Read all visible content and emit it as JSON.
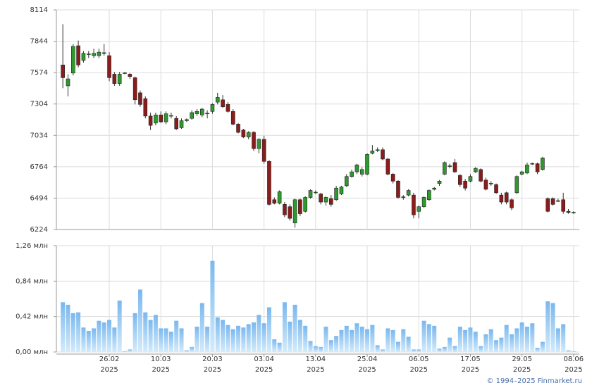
{
  "chart_data": {
    "type": "candlestick",
    "ylim": [
      6224,
      8114
    ],
    "yticks": [
      6224,
      6494,
      6764,
      7034,
      7304,
      7574,
      7844,
      8114
    ],
    "up_color": "#2e9a2e",
    "down_color": "#8b1c1c",
    "grid": true,
    "categories": [
      null,
      null,
      null,
      null,
      null,
      null,
      null,
      null,
      null,
      {
        "day": "26.02",
        "year": "2025"
      },
      null,
      null,
      null,
      null,
      null,
      null,
      null,
      null,
      null,
      {
        "day": "10.03",
        "year": "2025"
      },
      null,
      null,
      null,
      null,
      null,
      null,
      null,
      null,
      null,
      {
        "day": "20.03",
        "year": "2025"
      },
      null,
      null,
      null,
      null,
      null,
      null,
      null,
      null,
      null,
      {
        "day": "03.04",
        "year": "2025"
      },
      null,
      null,
      null,
      null,
      null,
      null,
      null,
      null,
      null,
      {
        "day": "13.04",
        "year": "2025"
      },
      null,
      null,
      null,
      null,
      null,
      null,
      null,
      null,
      null,
      {
        "day": "25.04",
        "year": "2025"
      },
      null,
      null,
      null,
      null,
      null,
      null,
      null,
      null,
      null,
      {
        "day": "06.05",
        "year": "2025"
      },
      null,
      null,
      null,
      null,
      null,
      null,
      null,
      null,
      null,
      {
        "day": "17.05",
        "year": "2025"
      },
      null,
      null,
      null,
      null,
      null,
      null,
      null,
      null,
      null,
      {
        "day": "29.05",
        "year": "2025"
      },
      null,
      null,
      null,
      null,
      null,
      null,
      null,
      null,
      null,
      {
        "day": "08.06",
        "year": "2025"
      }
    ],
    "ohlc": [
      [
        7640,
        7990,
        7440,
        7530
      ],
      [
        7460,
        7560,
        7370,
        7520
      ],
      [
        7570,
        7820,
        7550,
        7800
      ],
      [
        7805,
        7850,
        7620,
        7640
      ],
      [
        7680,
        7760,
        7660,
        7740
      ],
      [
        7730,
        7760,
        7700,
        7735
      ],
      [
        7720,
        7780,
        7700,
        7740
      ],
      [
        7720,
        7780,
        7700,
        7750
      ],
      [
        7745,
        7820,
        7720,
        7740
      ],
      [
        7720,
        7750,
        7500,
        7530
      ],
      [
        7560,
        7580,
        7460,
        7480
      ],
      [
        7480,
        7580,
        7460,
        7560
      ],
      [
        7570,
        7580,
        7560,
        7572
      ],
      [
        7560,
        7570,
        7520,
        7540
      ],
      [
        7530,
        7540,
        7300,
        7340
      ],
      [
        7400,
        7420,
        7280,
        7300
      ],
      [
        7350,
        7370,
        7180,
        7200
      ],
      [
        7200,
        7230,
        7080,
        7120
      ],
      [
        7140,
        7230,
        7120,
        7210
      ],
      [
        7210,
        7240,
        7140,
        7150
      ],
      [
        7150,
        7240,
        7130,
        7220
      ],
      [
        7200,
        7230,
        7180,
        7205
      ],
      [
        7180,
        7200,
        7080,
        7090
      ],
      [
        7100,
        7180,
        7090,
        7160
      ],
      [
        7160,
        7180,
        7150,
        7170
      ],
      [
        7180,
        7250,
        7170,
        7230
      ],
      [
        7220,
        7260,
        7200,
        7240
      ],
      [
        7210,
        7270,
        7190,
        7260
      ],
      [
        7220,
        7250,
        7180,
        7225
      ],
      [
        7240,
        7310,
        7220,
        7300
      ],
      [
        7320,
        7400,
        7300,
        7360
      ],
      [
        7340,
        7380,
        7270,
        7280
      ],
      [
        7300,
        7320,
        7230,
        7240
      ],
      [
        7240,
        7260,
        7120,
        7130
      ],
      [
        7130,
        7140,
        7050,
        7060
      ],
      [
        7080,
        7090,
        7010,
        7020
      ],
      [
        7020,
        7070,
        7000,
        7060
      ],
      [
        7060,
        7070,
        6900,
        6920
      ],
      [
        6920,
        7010,
        6880,
        7000
      ],
      [
        7000,
        7030,
        6790,
        6810
      ],
      [
        6810,
        6820,
        6430,
        6440
      ],
      [
        6480,
        6500,
        6440,
        6450
      ],
      [
        6450,
        6560,
        6440,
        6550
      ],
      [
        6440,
        6460,
        6330,
        6350
      ],
      [
        6420,
        6440,
        6300,
        6320
      ],
      [
        6280,
        6490,
        6240,
        6480
      ],
      [
        6480,
        6490,
        6340,
        6360
      ],
      [
        6380,
        6510,
        6370,
        6500
      ],
      [
        6500,
        6570,
        6490,
        6560
      ],
      [
        6540,
        6560,
        6530,
        6545
      ],
      [
        6530,
        6540,
        6440,
        6460
      ],
      [
        6460,
        6510,
        6430,
        6500
      ],
      [
        6490,
        6520,
        6420,
        6440
      ],
      [
        6480,
        6600,
        6470,
        6580
      ],
      [
        6530,
        6600,
        6520,
        6590
      ],
      [
        6600,
        6700,
        6590,
        6680
      ],
      [
        6680,
        6740,
        6670,
        6720
      ],
      [
        6720,
        6790,
        6700,
        6780
      ],
      [
        6700,
        6760,
        6680,
        6740
      ],
      [
        6700,
        6880,
        6690,
        6870
      ],
      [
        6880,
        6950,
        6870,
        6900
      ],
      [
        6905,
        6930,
        6890,
        6910
      ],
      [
        6910,
        6930,
        6820,
        6830
      ],
      [
        6830,
        6840,
        6690,
        6700
      ],
      [
        6700,
        6710,
        6620,
        6640
      ],
      [
        6640,
        6650,
        6490,
        6500
      ],
      [
        6500,
        6520,
        6480,
        6505
      ],
      [
        6520,
        6570,
        6510,
        6560
      ],
      [
        6520,
        6540,
        6320,
        6350
      ],
      [
        6380,
        6430,
        6320,
        6420
      ],
      [
        6420,
        6510,
        6410,
        6500
      ],
      [
        6480,
        6570,
        6470,
        6560
      ],
      [
        6570,
        6590,
        6560,
        6580
      ],
      [
        6620,
        6650,
        6600,
        6640
      ],
      [
        6700,
        6810,
        6690,
        6800
      ],
      [
        6770,
        6790,
        6750,
        6772
      ],
      [
        6800,
        6830,
        6710,
        6720
      ],
      [
        6690,
        6700,
        6590,
        6610
      ],
      [
        6640,
        6660,
        6560,
        6580
      ],
      [
        6640,
        6700,
        6630,
        6680
      ],
      [
        6720,
        6760,
        6710,
        6750
      ],
      [
        6740,
        6750,
        6630,
        6640
      ],
      [
        6650,
        6670,
        6560,
        6570
      ],
      [
        6620,
        6640,
        6600,
        6622
      ],
      [
        6610,
        6620,
        6530,
        6540
      ],
      [
        6520,
        6540,
        6440,
        6460
      ],
      [
        6540,
        6550,
        6440,
        6460
      ],
      [
        6480,
        6490,
        6390,
        6410
      ],
      [
        6540,
        6690,
        6530,
        6680
      ],
      [
        6700,
        6730,
        6690,
        6720
      ],
      [
        6710,
        6800,
        6700,
        6780
      ],
      [
        6790,
        6800,
        6780,
        6792
      ],
      [
        6790,
        6800,
        6700,
        6720
      ],
      [
        6740,
        6850,
        6730,
        6840
      ],
      [
        6490,
        6500,
        6370,
        6380
      ],
      [
        6490,
        6500,
        6430,
        6440
      ],
      [
        6470,
        6490,
        6460,
        6472
      ],
      [
        6480,
        6540,
        6360,
        6380
      ],
      [
        6380,
        6400,
        6360,
        6370
      ],
      [
        6370,
        6380,
        6360,
        6372
      ]
    ],
    "volume": {
      "type": "bar",
      "color": "#8cc6f2",
      "ylim": [
        0,
        1.26
      ],
      "yticks": [
        {
          "value": 0,
          "label": "0,00 млн"
        },
        {
          "value": 0.42,
          "label": "0,42 млн"
        },
        {
          "value": 0.84,
          "label": "0,84 млн"
        },
        {
          "value": 1.26,
          "label": "1,26 млн"
        }
      ],
      "values": [
        0.59,
        0.56,
        0.46,
        0.47,
        0.29,
        0.25,
        0.28,
        0.37,
        0.35,
        0.38,
        0.29,
        0.61,
        0.01,
        0.03,
        0.46,
        0.74,
        0.47,
        0.38,
        0.44,
        0.28,
        0.28,
        0.24,
        0.37,
        0.28,
        0.02,
        0.06,
        0.3,
        0.58,
        0.3,
        1.08,
        0.41,
        0.38,
        0.32,
        0.27,
        0.31,
        0.29,
        0.33,
        0.35,
        0.44,
        0.34,
        0.53,
        0.15,
        0.11,
        0.59,
        0.36,
        0.56,
        0.38,
        0.31,
        0.13,
        0.07,
        0.06,
        0.3,
        0.14,
        0.19,
        0.26,
        0.31,
        0.26,
        0.34,
        0.3,
        0.27,
        0.32,
        0.08,
        0.03,
        0.28,
        0.26,
        0.12,
        0.27,
        0.18,
        0.03,
        0.03,
        0.37,
        0.33,
        0.31,
        0.04,
        0.06,
        0.17,
        0.07,
        0.3,
        0.26,
        0.29,
        0.24,
        0.07,
        0.21,
        0.27,
        0.14,
        0.17,
        0.32,
        0.21,
        0.28,
        0.35,
        0.3,
        0.34,
        0.05,
        0.12,
        0.6,
        0.58,
        0.28,
        0.33,
        0.02,
        0.01
      ]
    }
  },
  "copyright": "© 1994–2025 Finmarket.ru"
}
